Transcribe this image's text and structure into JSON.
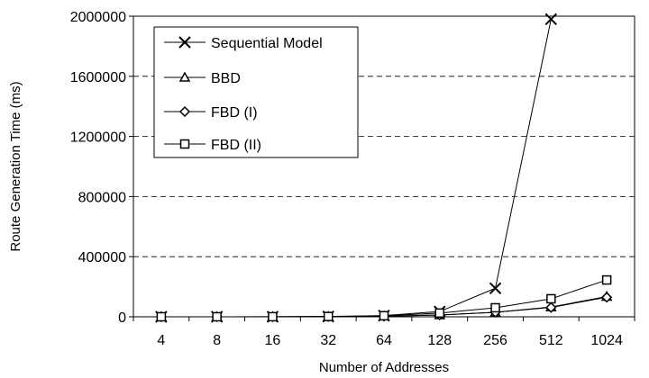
{
  "chart_data": {
    "type": "line",
    "title": "",
    "xlabel": "Number of Addresses",
    "ylabel": "Route Generation Time (ms)",
    "categories": [
      "4",
      "8",
      "16",
      "32",
      "64",
      "128",
      "256",
      "512",
      "1024"
    ],
    "ylim": [
      0,
      2000000
    ],
    "yticks": [
      "0",
      "400000",
      "800000",
      "1200000",
      "1600000",
      "2000000"
    ],
    "grid": "horizontal-dashed",
    "legend_position": "top-left",
    "series": [
      {
        "name": "Sequential Model",
        "marker": "x",
        "values": [
          50,
          200,
          500,
          2000,
          8000,
          35000,
          190000,
          1980000,
          null
        ]
      },
      {
        "name": "BBD",
        "marker": "triangle",
        "values": [
          20,
          100,
          300,
          1000,
          4000,
          12000,
          30000,
          65000,
          135000
        ]
      },
      {
        "name": "FBD (I)",
        "marker": "diamond",
        "values": [
          20,
          100,
          300,
          1000,
          4000,
          12000,
          30000,
          62000,
          130000
        ]
      },
      {
        "name": "FBD (II)",
        "marker": "square",
        "values": [
          30,
          150,
          500,
          2000,
          7000,
          25000,
          60000,
          120000,
          245000
        ]
      }
    ]
  }
}
